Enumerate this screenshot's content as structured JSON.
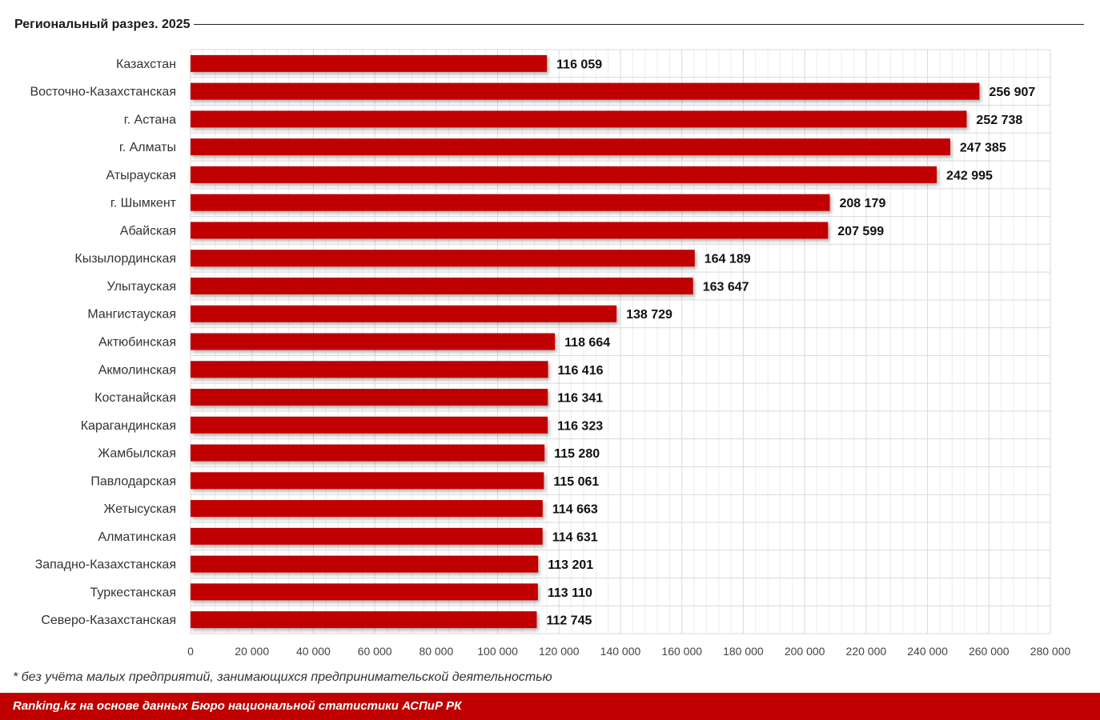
{
  "title": "Региональный разрез. 2025",
  "footnote": "* без учёта малых предприятий, занимающихся предпринимательской деятельностью",
  "source": "Ranking.kz на основе данных Бюро национальной статистики АСПиР РК",
  "colors": {
    "bar": "#c00000",
    "footer": "#c00000",
    "grid": "#d9d9d9"
  },
  "chart_data": {
    "type": "bar",
    "orientation": "horizontal",
    "categories": [
      "Казахстан",
      "Восточно-Казахстанская",
      "г. Астана",
      "г. Алматы",
      "Атырауская",
      "г. Шымкент",
      "Абайская",
      "Кызылординская",
      "Улытауская",
      "Мангистауская",
      "Актюбинская",
      "Акмолинская",
      "Костанайская",
      "Карагандинская",
      "Жамбылская",
      "Павлодарская",
      "Жетысуская",
      "Алматинская",
      "Западно-Казахстанская",
      "Туркестанская",
      "Северо-Казахстанская"
    ],
    "values": [
      116059,
      256907,
      252738,
      247385,
      242995,
      208179,
      207599,
      164189,
      163647,
      138729,
      118664,
      116416,
      116341,
      116323,
      115280,
      115061,
      114663,
      114631,
      113201,
      113110,
      112745
    ],
    "value_labels": [
      "116 059",
      "256 907",
      "252 738",
      "247 385",
      "242 995",
      "208 179",
      "207 599",
      "164 189",
      "163 647",
      "138 729",
      "118 664",
      "116 416",
      "116 341",
      "116 323",
      "115 280",
      "115 061",
      "114 663",
      "114 631",
      "113 201",
      "113 110",
      "112 745"
    ],
    "xlim": [
      0,
      280000
    ],
    "xticks": [
      0,
      20000,
      40000,
      60000,
      80000,
      100000,
      120000,
      140000,
      160000,
      180000,
      200000,
      220000,
      240000,
      260000,
      280000
    ],
    "xtick_labels": [
      "0",
      "20 000",
      "40 000",
      "60 000",
      "80 000",
      "100 000",
      "120 000",
      "140 000",
      "160 000",
      "180 000",
      "200 000",
      "220 000",
      "240 000",
      "260 000",
      "280 000"
    ],
    "grid": true,
    "legend": false
  }
}
